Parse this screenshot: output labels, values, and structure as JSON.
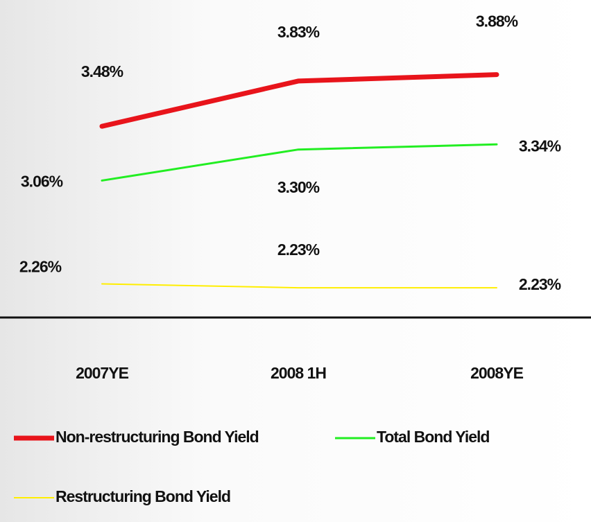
{
  "chart_data": {
    "type": "line",
    "categories": [
      "2007YE",
      "2008 1H",
      "2008YE"
    ],
    "series": [
      {
        "name": "Non-restructuring Bond Yield",
        "color": "#e8141b",
        "values": [
          3.48,
          3.83,
          3.88
        ],
        "value_labels": [
          "3.48%",
          "3.83%",
          "3.88%"
        ]
      },
      {
        "name": "Total Bond Yield",
        "color": "#22ee22",
        "values": [
          3.06,
          3.3,
          3.34
        ],
        "value_labels": [
          "3.06%",
          "3.30%",
          "3.34%"
        ]
      },
      {
        "name": "Restructuring Bond Yield",
        "color": "#ffee00",
        "values": [
          2.26,
          2.23,
          2.23
        ],
        "value_labels": [
          "2.26%",
          "2.23%",
          "2.23%"
        ]
      }
    ],
    "ylim": [
      2,
      4.35
    ]
  }
}
